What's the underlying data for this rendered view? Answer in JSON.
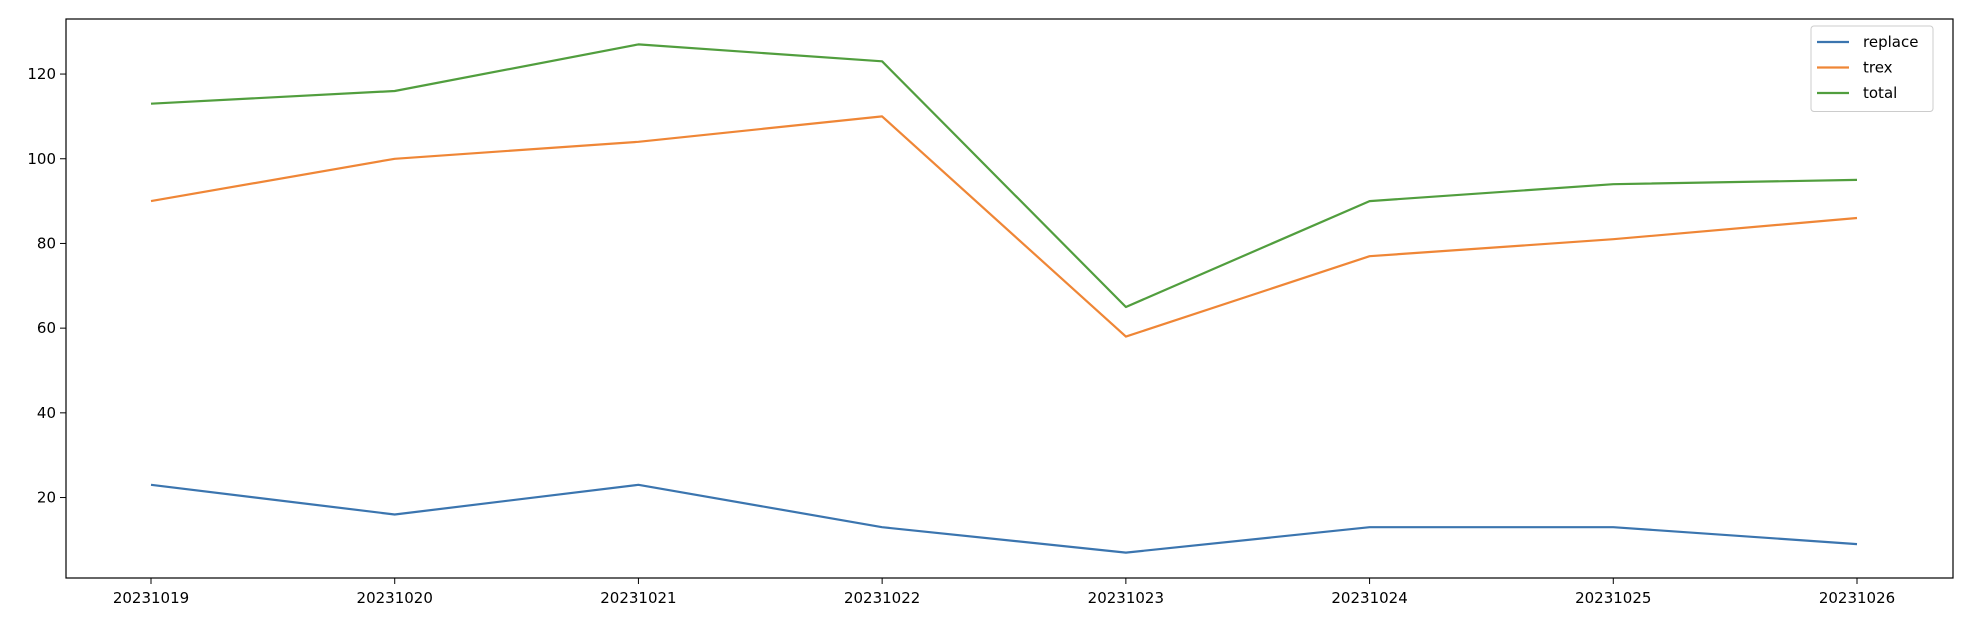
{
  "chart_data": {
    "type": "line",
    "title": "",
    "xlabel": "",
    "ylabel": "",
    "categories": [
      "20231019",
      "20231020",
      "20231021",
      "20231022",
      "20231023",
      "20231024",
      "20231025",
      "20231026"
    ],
    "series": [
      {
        "name": "replace",
        "color": "#3b75af",
        "values": [
          23,
          16,
          23,
          13,
          7,
          13,
          13,
          9
        ]
      },
      {
        "name": "trex",
        "color": "#ef8636",
        "values": [
          90,
          100,
          104,
          110,
          58,
          77,
          81,
          86
        ]
      },
      {
        "name": "total",
        "color": "#519e3e",
        "values": [
          113,
          116,
          127,
          123,
          65,
          90,
          94,
          95
        ]
      }
    ],
    "yticks": [
      20,
      40,
      60,
      80,
      100,
      120
    ],
    "ylim": [
      1,
      133
    ],
    "grid": false,
    "legend_position": "top-right"
  }
}
